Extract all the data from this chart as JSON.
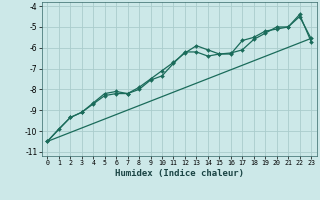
{
  "xlabel": "Humidex (Indice chaleur)",
  "background_color": "#cce8e8",
  "grid_color": "#aacccc",
  "line_color": "#1a6b5a",
  "xlim": [
    -0.5,
    23.5
  ],
  "ylim": [
    -11.2,
    -3.8
  ],
  "xticks": [
    0,
    1,
    2,
    3,
    4,
    5,
    6,
    7,
    8,
    9,
    10,
    11,
    12,
    13,
    14,
    15,
    16,
    17,
    18,
    19,
    20,
    21,
    22,
    23
  ],
  "yticks": [
    -11,
    -10,
    -9,
    -8,
    -7,
    -6,
    -5,
    -4
  ],
  "series1_x": [
    0,
    1,
    2,
    3,
    4,
    5,
    6,
    7,
    8,
    9,
    10,
    11,
    12,
    13,
    14,
    15,
    16,
    17,
    18,
    19,
    20,
    21,
    22,
    23
  ],
  "series1_y": [
    -10.5,
    -9.9,
    -9.35,
    -9.1,
    -8.7,
    -8.3,
    -8.2,
    -8.2,
    -8.0,
    -7.55,
    -7.35,
    -6.75,
    -6.2,
    -6.2,
    -6.4,
    -6.3,
    -6.25,
    -6.1,
    -5.6,
    -5.3,
    -5.0,
    -5.0,
    -4.5,
    -5.55
  ],
  "series2_x": [
    0,
    2,
    3,
    4,
    5,
    6,
    7,
    8,
    9,
    10,
    11,
    12,
    13,
    14,
    15,
    16,
    17,
    18,
    19,
    20,
    21,
    22,
    23
  ],
  "series2_y": [
    -10.5,
    -9.35,
    -9.1,
    -8.65,
    -8.2,
    -8.1,
    -8.2,
    -7.9,
    -7.5,
    -7.1,
    -6.7,
    -6.25,
    -5.9,
    -6.1,
    -6.3,
    -6.3,
    -5.65,
    -5.5,
    -5.2,
    -5.1,
    -5.0,
    -4.4,
    -5.7
  ],
  "series3_x": [
    0,
    23
  ],
  "series3_y": [
    -10.5,
    -5.55
  ]
}
